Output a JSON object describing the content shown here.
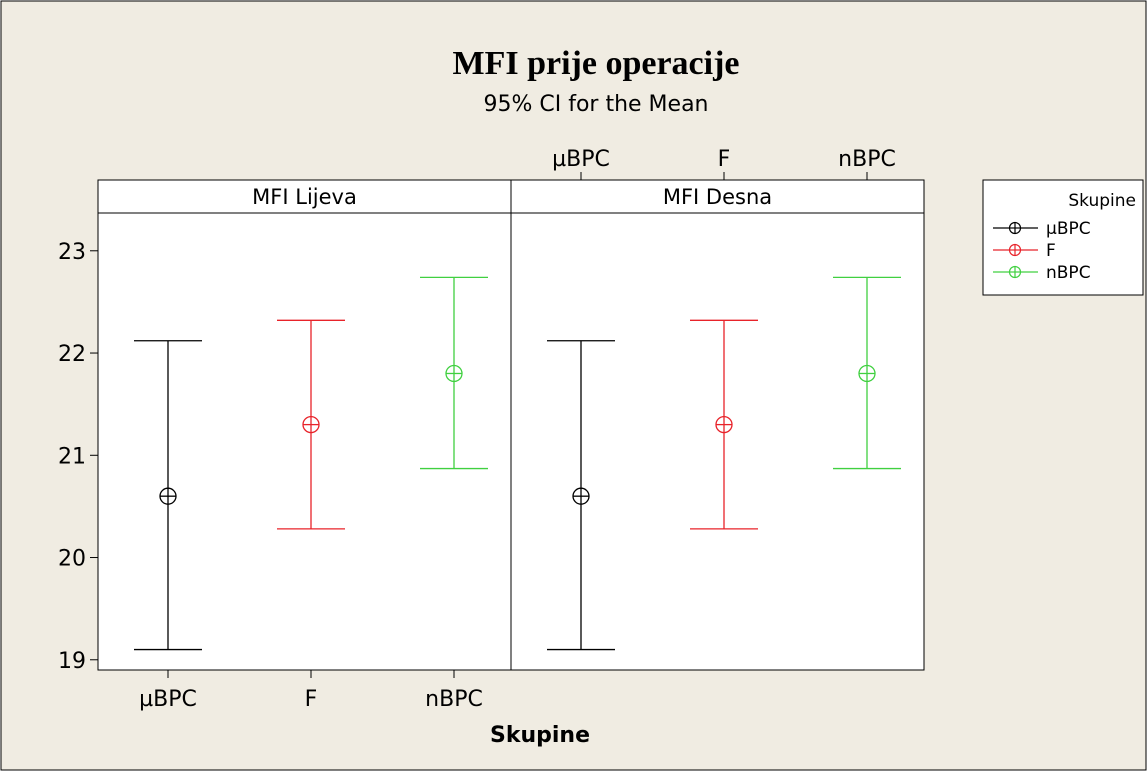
{
  "chart_data": {
    "type": "interval",
    "title": "MFI prije operacije",
    "subtitle": "95% CI for the Mean",
    "xlabel": "Skupine",
    "ylabel": "",
    "ylim": [
      18.9,
      23.35
    ],
    "yticks": [
      19,
      20,
      21,
      22,
      23
    ],
    "categories": [
      "µBPC",
      "F",
      "nBPC"
    ],
    "panels": [
      {
        "name": "MFI Lijeva",
        "groups": [
          {
            "category": "µBPC",
            "mean": 20.6,
            "lower": 19.1,
            "upper": 22.12
          },
          {
            "category": "F",
            "mean": 21.3,
            "lower": 20.28,
            "upper": 22.32
          },
          {
            "category": "nBPC",
            "mean": 21.8,
            "lower": 20.87,
            "upper": 22.74
          }
        ]
      },
      {
        "name": "MFI Desna",
        "groups": [
          {
            "category": "µBPC",
            "mean": 20.6,
            "lower": 19.1,
            "upper": 22.12
          },
          {
            "category": "F",
            "mean": 21.3,
            "lower": 20.28,
            "upper": 22.32
          },
          {
            "category": "nBPC",
            "mean": 21.8,
            "lower": 20.87,
            "upper": 22.74
          }
        ]
      }
    ],
    "legend": {
      "title": "Skupine",
      "placement": "right",
      "entries": [
        {
          "name": "µBPC",
          "color": "#000000"
        },
        {
          "name": "F",
          "color": "#e8232a"
        },
        {
          "name": "nBPC",
          "color": "#40d040"
        }
      ]
    },
    "colors": {
      "background": "#f0ece2",
      "plot_area": "#ffffff",
      "frame": "#000000"
    },
    "grid": false
  }
}
